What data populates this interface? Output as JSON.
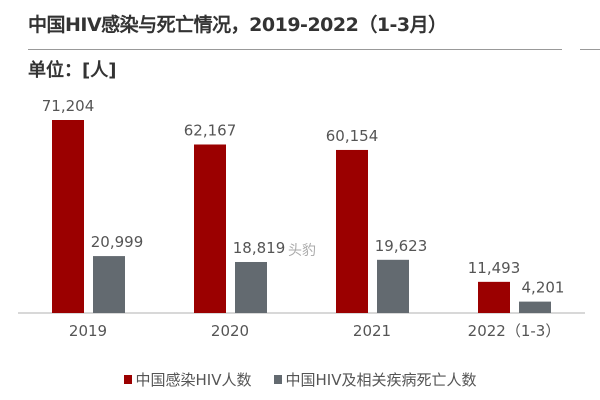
{
  "chart_data": {
    "type": "bar",
    "title": "中国HIV感染与死亡情况，2019-2022（1-3月）",
    "unit_label": "单位：[人]",
    "categories": [
      "2019",
      "2020",
      "2021",
      "2022（1-3）"
    ],
    "series": [
      {
        "name": "中国感染HIV人数",
        "color": "#9b0000",
        "values": [
          71204,
          62167,
          60154,
          11493
        ],
        "labels": [
          "71,204",
          "62,167",
          "60,154",
          "11,493"
        ]
      },
      {
        "name": "中国HIV及相关疾病死亡人数",
        "color": "#636a70",
        "values": [
          20999,
          18819,
          19623,
          4201
        ],
        "labels": [
          "20,999",
          "18,819",
          "19,623",
          "4,201"
        ]
      }
    ],
    "ylim": [
      0,
      80000
    ],
    "grid": false,
    "legend": "bottom"
  },
  "watermark": "头豹"
}
